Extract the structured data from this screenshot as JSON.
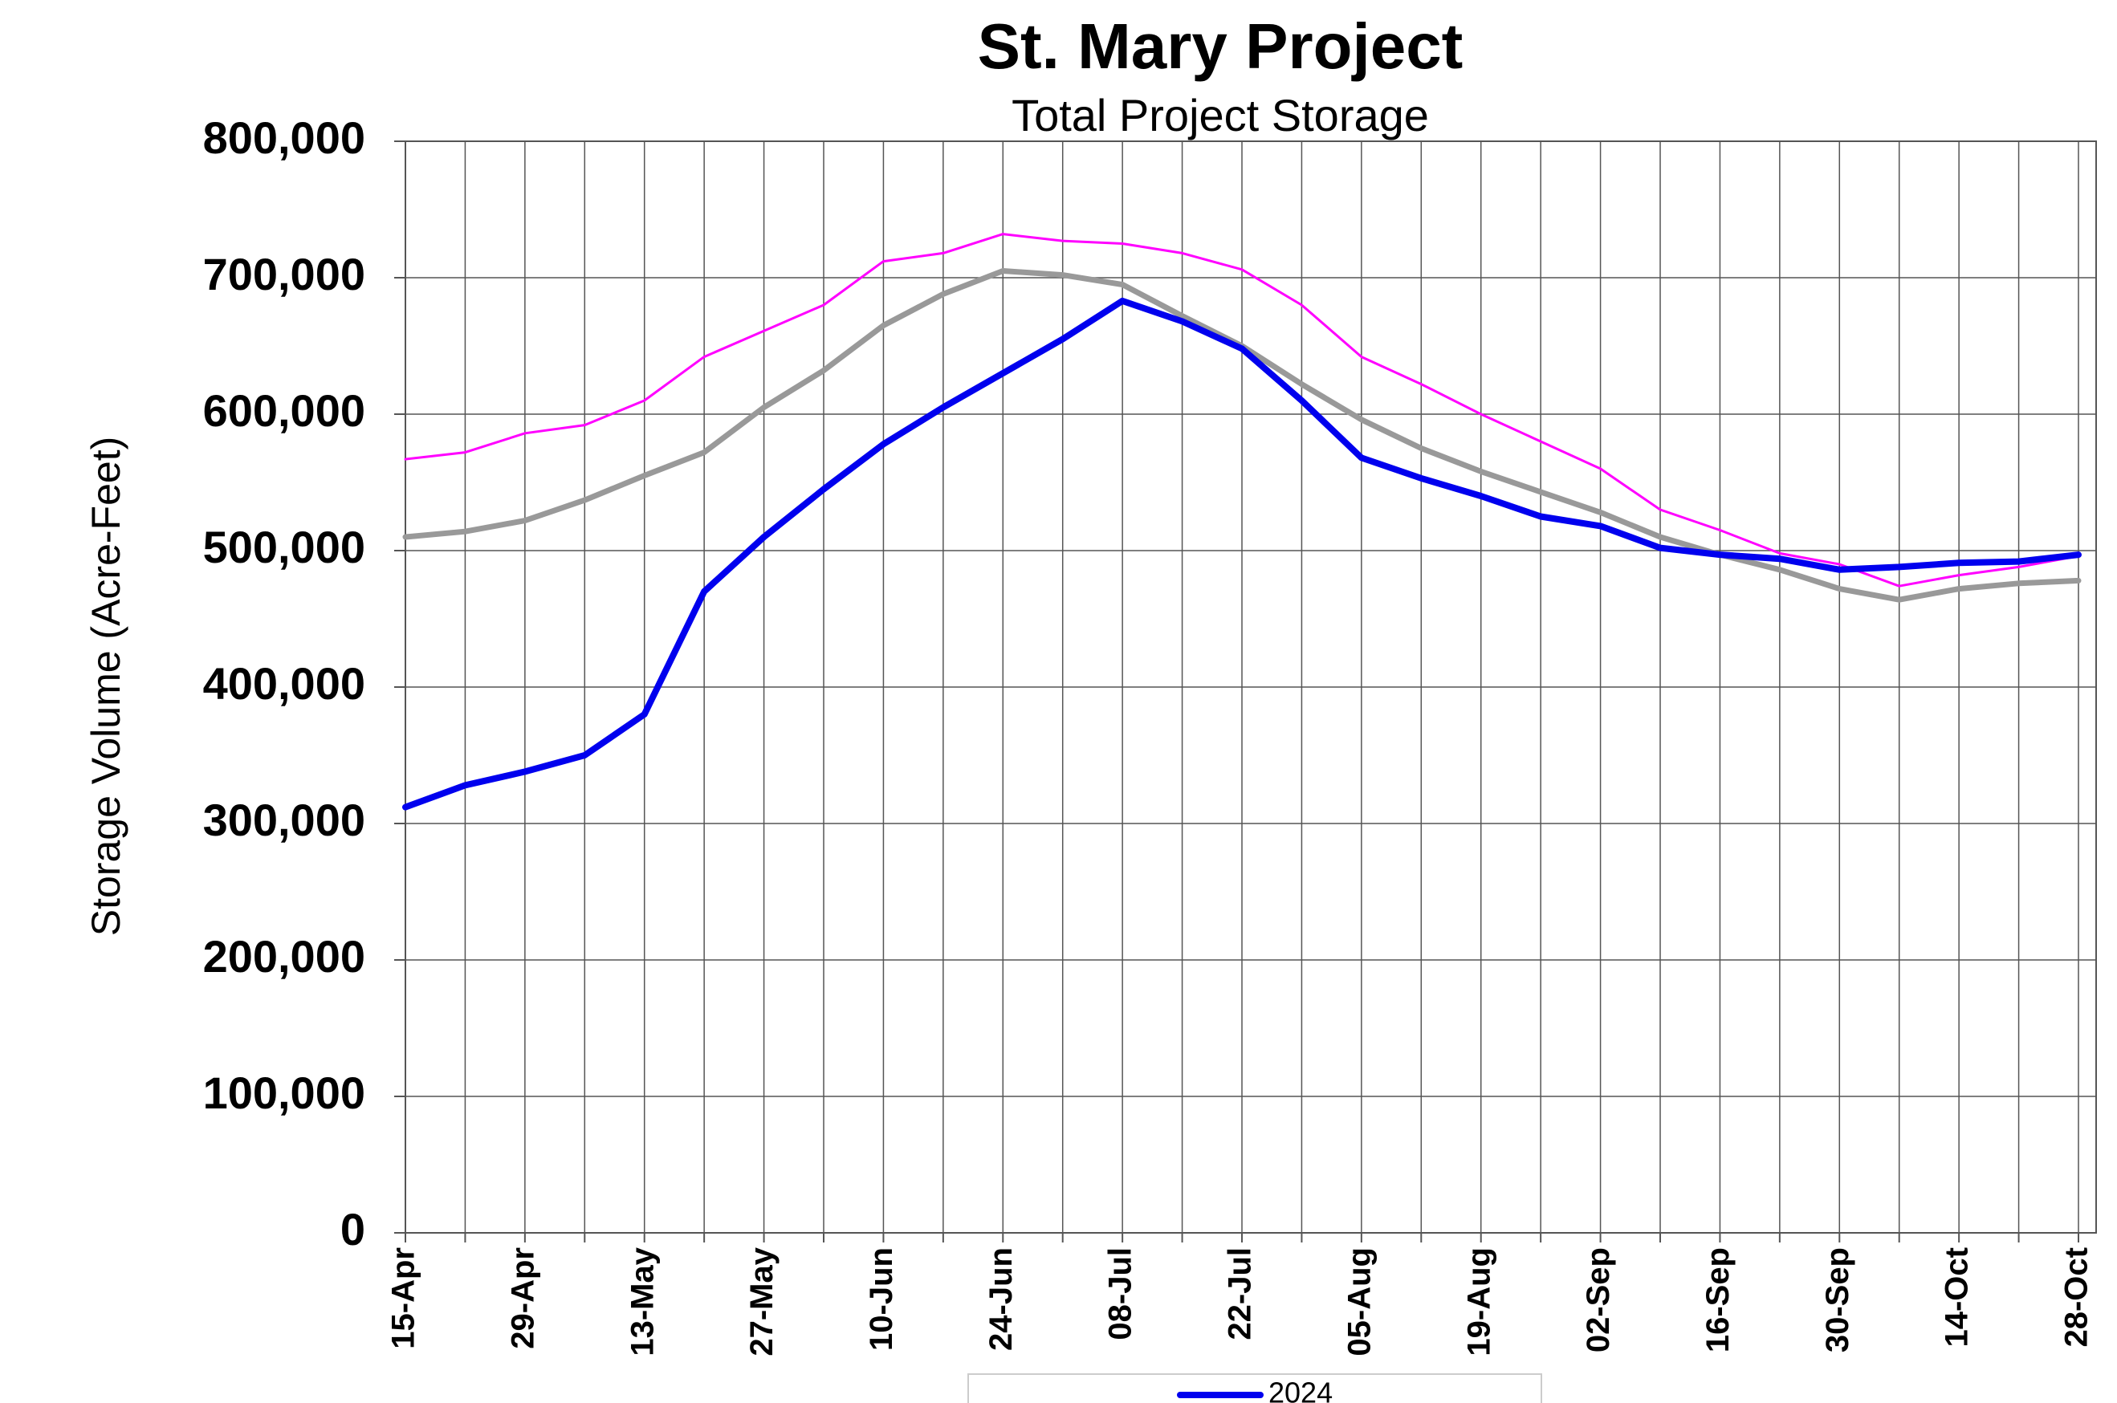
{
  "chart_data": {
    "type": "line",
    "title": "St. Mary Project",
    "subtitle": "Total Project Storage",
    "y_label": "Storage Volume (Acre-Feet)",
    "categories": [
      "15-Apr",
      null,
      "29-Apr",
      null,
      "13-May",
      null,
      "27-May",
      null,
      "10-Jun",
      null,
      "24-Jun",
      null,
      "08-Jul",
      null,
      "22-Jul",
      null,
      "05-Aug",
      null,
      "19-Aug",
      null,
      "02-Sep",
      null,
      "16-Sep",
      null,
      "30-Sep",
      null,
      "14-Oct",
      null,
      "28-Oct"
    ],
    "series": [
      {
        "color": "#ff00ff",
        "values": [
          567000,
          572000,
          586000,
          592000,
          610000,
          642000,
          661000,
          680000,
          712000,
          718000,
          732000,
          727000,
          725000,
          718000,
          706000,
          680000,
          642000,
          622000,
          600000,
          580000,
          560000,
          530000,
          515000,
          498000,
          490000,
          474000,
          482000,
          488000,
          496000
        ]
      },
      {
        "color": "#999999",
        "values": [
          510000,
          514000,
          522000,
          537000,
          555000,
          572000,
          605000,
          632000,
          665000,
          688000,
          705000,
          702000,
          695000,
          672000,
          650000,
          622000,
          596000,
          575000,
          558000,
          543000,
          528000,
          510000,
          497000,
          486000,
          472000,
          464000,
          472000,
          476000,
          478000
        ]
      },
      {
        "name": "2024",
        "color": "#0000ee",
        "values": [
          312000,
          328000,
          338000,
          350000,
          380000,
          470000,
          510000,
          545000,
          578000,
          605000,
          630000,
          655000,
          683000,
          668000,
          648000,
          610000,
          568000,
          553000,
          540000,
          525000,
          518000,
          502000,
          497000,
          494000,
          486000,
          488000,
          491000,
          492000,
          497000
        ]
      }
    ],
    "ylim": [
      0,
      800000
    ],
    "yticks": [
      0,
      {
        "value": 100000,
        "label": "100,000"
      },
      {
        "value": 200000,
        "label": "200,000"
      },
      {
        "value": 300000,
        "label": "300,000"
      },
      {
        "value": 400000,
        "label": "400,000"
      },
      {
        "value": 500000,
        "label": "500,000"
      },
      {
        "value": 600000,
        "label": "600,000"
      },
      {
        "value": 700000,
        "label": "700,000"
      },
      {
        "value": 800000,
        "label": "800,000"
      }
    ],
    "grid": true,
    "legend": "bottom"
  }
}
